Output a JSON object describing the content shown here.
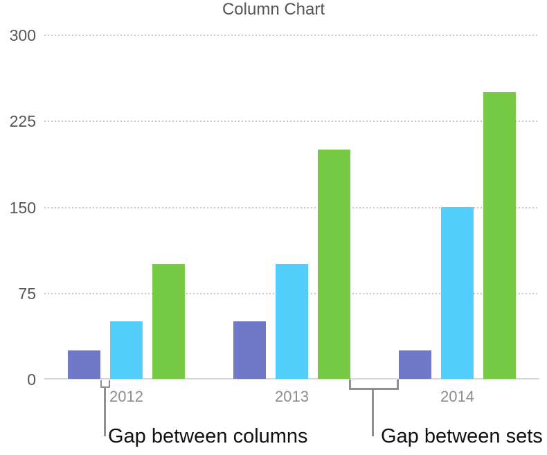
{
  "title": "Column Chart",
  "chart_data": {
    "type": "bar",
    "title": "Column Chart",
    "categories": [
      "2012",
      "2013",
      "2014"
    ],
    "series": [
      {
        "color": "#6F79C7",
        "values": [
          25,
          50,
          25
        ]
      },
      {
        "color": "#53CDFB",
        "values": [
          50,
          100,
          150
        ]
      },
      {
        "color": "#77CA45",
        "values": [
          100,
          200,
          250
        ]
      }
    ],
    "ylim": [
      0,
      300
    ],
    "yticks": [
      300,
      225,
      150,
      75,
      0
    ],
    "grid": "dotted horizontal gridlines",
    "legend": "none"
  },
  "annotations": {
    "gap_between_columns": "Gap between columns",
    "gap_between_sets": "Gap between sets"
  },
  "colors": {
    "title": "#565658",
    "tick_label": "#565658",
    "category_label": "#8D8D8D",
    "gridline": "#C6C6C6",
    "axis": "#D9D9D9",
    "bracket": "#8F8F8F",
    "annotation_text": "#111111"
  }
}
